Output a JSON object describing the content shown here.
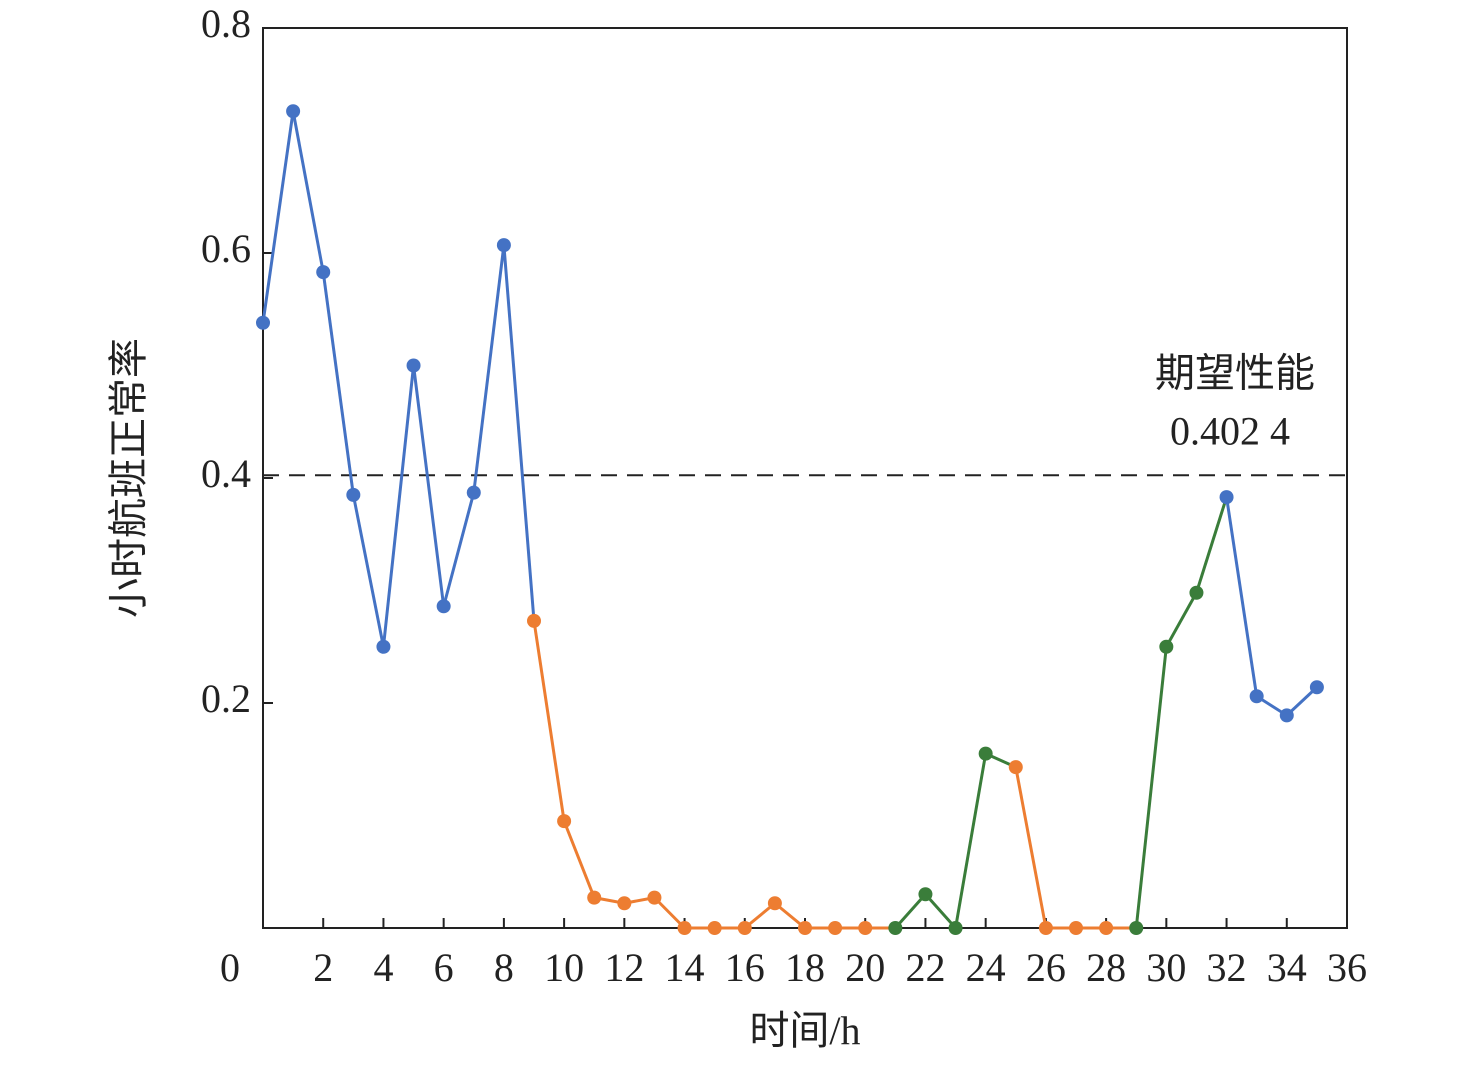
{
  "chart_data": {
    "type": "line",
    "x_label": "时间/h",
    "y_label": "小时航班正常率",
    "x": [
      0,
      1,
      2,
      3,
      4,
      5,
      6,
      7,
      8,
      9,
      10,
      11,
      12,
      13,
      14,
      15,
      16,
      17,
      18,
      19,
      20,
      21,
      22,
      23,
      24,
      25,
      26,
      27,
      28,
      29,
      30,
      31,
      32,
      33,
      34,
      35
    ],
    "series": [
      {
        "values": [
          0.538,
          0.726,
          0.583,
          0.385,
          0.25,
          0.5,
          0.286,
          0.387,
          0.607,
          0.273,
          0.095,
          0.027,
          0.022,
          0.027,
          0,
          0,
          0,
          0.022,
          0,
          0,
          0,
          0,
          0.03,
          0,
          0.155,
          0.143,
          0,
          0,
          0,
          0,
          0.25,
          0.298,
          0.383,
          0.206,
          0.189,
          0.214
        ],
        "point_colors": [
          "#4472c4",
          "#4472c4",
          "#4472c4",
          "#4472c4",
          "#4472c4",
          "#4472c4",
          "#4472c4",
          "#4472c4",
          "#4472c4",
          "#ed7d31",
          "#ed7d31",
          "#ed7d31",
          "#ed7d31",
          "#ed7d31",
          "#ed7d31",
          "#ed7d31",
          "#ed7d31",
          "#ed7d31",
          "#ed7d31",
          "#ed7d31",
          "#ed7d31",
          "#3a7d3a",
          "#3a7d3a",
          "#3a7d3a",
          "#3a7d3a",
          "#ed7d31",
          "#ed7d31",
          "#ed7d31",
          "#ed7d31",
          "#3a7d3a",
          "#3a7d3a",
          "#3a7d3a",
          "#4472c4",
          "#4472c4",
          "#4472c4",
          "#4472c4"
        ]
      }
    ],
    "reference_line": {
      "value": 0.4024,
      "label": "0.402 4",
      "text": "期望性能"
    },
    "xlim": [
      0,
      36
    ],
    "xticks": [
      0,
      2,
      4,
      6,
      8,
      10,
      12,
      14,
      16,
      18,
      20,
      22,
      24,
      26,
      28,
      30,
      32,
      34,
      36
    ],
    "ylim": [
      0,
      0.8
    ],
    "yticks": [
      0.2,
      0.4,
      0.6,
      0.8
    ]
  }
}
